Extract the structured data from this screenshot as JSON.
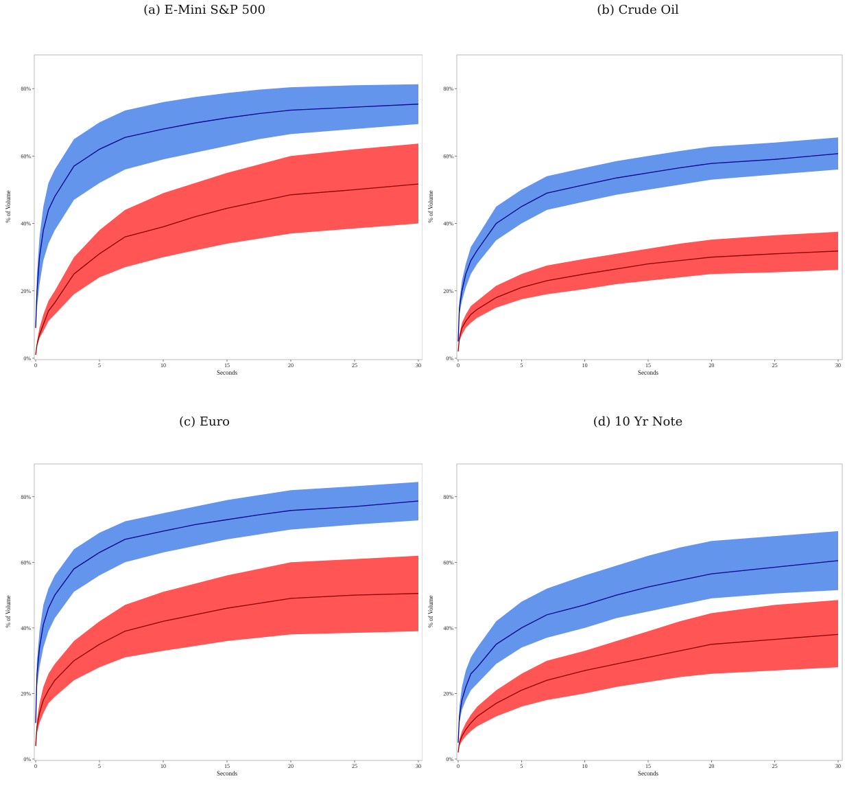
{
  "chart_data": [
    {
      "panel_title": "(a) E-Mini S&P 500",
      "type": "area",
      "xlabel": "Seconds",
      "ylabel": "% of Volume",
      "xlim": [
        0,
        30
      ],
      "ylim": [
        0,
        0.9
      ],
      "xticks": [
        "0",
        "5",
        "10",
        "15",
        "20",
        "25",
        "30"
      ],
      "yticks": [
        "0%",
        "20%",
        "40%",
        "60%",
        "80%"
      ],
      "series": [
        {
          "color": "#6495ED",
          "line_color": "#00008B",
          "mean": [
            0.09,
            0.2,
            0.3,
            0.38,
            0.44,
            0.48,
            0.57,
            0.62,
            0.655,
            0.68,
            0.698,
            0.713,
            0.726,
            0.736,
            0.745,
            0.754
          ],
          "lower": [
            0.085,
            0.15,
            0.22,
            0.29,
            0.34,
            0.38,
            0.47,
            0.52,
            0.56,
            0.59,
            0.61,
            0.63,
            0.65,
            0.665,
            0.68,
            0.695
          ],
          "upper": [
            0.095,
            0.25,
            0.36,
            0.45,
            0.52,
            0.56,
            0.65,
            0.7,
            0.735,
            0.76,
            0.775,
            0.787,
            0.797,
            0.804,
            0.81,
            0.813
          ]
        },
        {
          "color": "#FF5555",
          "line_color": "#8B0000",
          "mean": [
            0.01,
            0.04,
            0.07,
            0.1,
            0.14,
            0.165,
            0.25,
            0.31,
            0.36,
            0.39,
            0.42,
            0.445,
            0.465,
            0.485,
            0.5,
            0.517
          ],
          "lower": [
            0.01,
            0.035,
            0.06,
            0.08,
            0.11,
            0.13,
            0.19,
            0.24,
            0.27,
            0.3,
            0.32,
            0.34,
            0.355,
            0.37,
            0.385,
            0.4
          ],
          "upper": [
            0.015,
            0.05,
            0.09,
            0.13,
            0.17,
            0.2,
            0.3,
            0.38,
            0.44,
            0.49,
            0.52,
            0.55,
            0.575,
            0.6,
            0.62,
            0.637
          ]
        }
      ]
    },
    {
      "panel_title": "(b) Crude Oil",
      "type": "area",
      "xlabel": "Seconds",
      "ylabel": "% of Volume",
      "xlim": [
        0,
        30
      ],
      "ylim": [
        0,
        0.9
      ],
      "xticks": [
        "0",
        "5",
        "10",
        "15",
        "20",
        "25",
        "30"
      ],
      "yticks": [
        "0%",
        "20%",
        "40%",
        "60%",
        "80%"
      ],
      "series": [
        {
          "color": "#6495ED",
          "line_color": "#00008B",
          "mean": [
            0.05,
            0.15,
            0.2,
            0.25,
            0.29,
            0.32,
            0.4,
            0.45,
            0.49,
            0.515,
            0.535,
            0.55,
            0.565,
            0.578,
            0.59,
            0.607
          ],
          "lower": [
            0.045,
            0.13,
            0.17,
            0.21,
            0.25,
            0.28,
            0.35,
            0.4,
            0.44,
            0.465,
            0.485,
            0.5,
            0.515,
            0.53,
            0.545,
            0.56
          ],
          "upper": [
            0.055,
            0.17,
            0.23,
            0.28,
            0.33,
            0.36,
            0.45,
            0.5,
            0.54,
            0.565,
            0.585,
            0.6,
            0.615,
            0.628,
            0.64,
            0.655
          ]
        },
        {
          "color": "#FF5555",
          "line_color": "#8B0000",
          "mean": [
            0.02,
            0.06,
            0.09,
            0.11,
            0.13,
            0.145,
            0.18,
            0.21,
            0.23,
            0.25,
            0.265,
            0.28,
            0.29,
            0.3,
            0.31,
            0.318
          ],
          "lower": [
            0.018,
            0.05,
            0.07,
            0.09,
            0.105,
            0.12,
            0.15,
            0.175,
            0.19,
            0.205,
            0.22,
            0.23,
            0.24,
            0.25,
            0.255,
            0.262
          ],
          "upper": [
            0.025,
            0.07,
            0.105,
            0.13,
            0.155,
            0.17,
            0.215,
            0.25,
            0.275,
            0.295,
            0.31,
            0.325,
            0.34,
            0.352,
            0.365,
            0.375
          ]
        }
      ]
    },
    {
      "panel_title": "(c) Euro",
      "type": "area",
      "xlabel": "Seconds",
      "ylabel": "% of Volume",
      "xlim": [
        0,
        30
      ],
      "ylim": [
        0,
        0.9
      ],
      "xticks": [
        "0",
        "5",
        "10",
        "15",
        "20",
        "25",
        "30"
      ],
      "yticks": [
        "0%",
        "20%",
        "40%",
        "60%",
        "80%"
      ],
      "series": [
        {
          "color": "#6495ED",
          "line_color": "#00008B",
          "mean": [
            0.11,
            0.26,
            0.34,
            0.41,
            0.46,
            0.5,
            0.58,
            0.63,
            0.67,
            0.695,
            0.715,
            0.73,
            0.745,
            0.758,
            0.77,
            0.787
          ],
          "lower": [
            0.105,
            0.22,
            0.28,
            0.34,
            0.39,
            0.43,
            0.51,
            0.56,
            0.6,
            0.63,
            0.65,
            0.67,
            0.685,
            0.7,
            0.715,
            0.728
          ],
          "upper": [
            0.115,
            0.3,
            0.39,
            0.47,
            0.52,
            0.56,
            0.64,
            0.69,
            0.725,
            0.75,
            0.77,
            0.79,
            0.805,
            0.82,
            0.832,
            0.845
          ]
        },
        {
          "color": "#FF5555",
          "line_color": "#8B0000",
          "mean": [
            0.04,
            0.1,
            0.14,
            0.18,
            0.21,
            0.24,
            0.3,
            0.35,
            0.39,
            0.42,
            0.44,
            0.46,
            0.475,
            0.49,
            0.5,
            0.505
          ],
          "lower": [
            0.035,
            0.08,
            0.11,
            0.14,
            0.17,
            0.19,
            0.24,
            0.28,
            0.31,
            0.33,
            0.345,
            0.36,
            0.37,
            0.38,
            0.385,
            0.39
          ],
          "upper": [
            0.045,
            0.12,
            0.17,
            0.22,
            0.26,
            0.29,
            0.36,
            0.42,
            0.47,
            0.51,
            0.535,
            0.56,
            0.58,
            0.6,
            0.61,
            0.62
          ]
        }
      ]
    },
    {
      "panel_title": "(d) 10 Yr Note",
      "type": "area",
      "xlabel": "Seconds",
      "ylabel": "% of Volume",
      "xlim": [
        0,
        30
      ],
      "ylim": [
        0,
        0.9
      ],
      "xticks": [
        "0",
        "5",
        "10",
        "15",
        "20",
        "25",
        "30"
      ],
      "yticks": [
        "0%",
        "20%",
        "40%",
        "60%",
        "80%"
      ],
      "series": [
        {
          "color": "#6495ED",
          "line_color": "#00008B",
          "mean": [
            0.05,
            0.13,
            0.18,
            0.22,
            0.26,
            0.28,
            0.35,
            0.4,
            0.44,
            0.47,
            0.5,
            0.525,
            0.545,
            0.565,
            0.585,
            0.605
          ],
          "lower": [
            0.045,
            0.11,
            0.15,
            0.18,
            0.21,
            0.23,
            0.29,
            0.34,
            0.37,
            0.4,
            0.43,
            0.45,
            0.47,
            0.49,
            0.505,
            0.515
          ],
          "upper": [
            0.055,
            0.16,
            0.22,
            0.27,
            0.31,
            0.34,
            0.42,
            0.48,
            0.52,
            0.56,
            0.59,
            0.62,
            0.645,
            0.665,
            0.68,
            0.695
          ]
        },
        {
          "color": "#FF5555",
          "line_color": "#8B0000",
          "mean": [
            0.02,
            0.05,
            0.07,
            0.09,
            0.11,
            0.13,
            0.17,
            0.21,
            0.24,
            0.27,
            0.29,
            0.31,
            0.33,
            0.35,
            0.365,
            0.38
          ],
          "lower": [
            0.018,
            0.04,
            0.055,
            0.07,
            0.085,
            0.1,
            0.13,
            0.16,
            0.18,
            0.2,
            0.22,
            0.235,
            0.25,
            0.26,
            0.27,
            0.28
          ],
          "upper": [
            0.025,
            0.06,
            0.085,
            0.11,
            0.135,
            0.16,
            0.21,
            0.26,
            0.3,
            0.33,
            0.36,
            0.39,
            0.42,
            0.445,
            0.47,
            0.485
          ]
        }
      ]
    }
  ]
}
